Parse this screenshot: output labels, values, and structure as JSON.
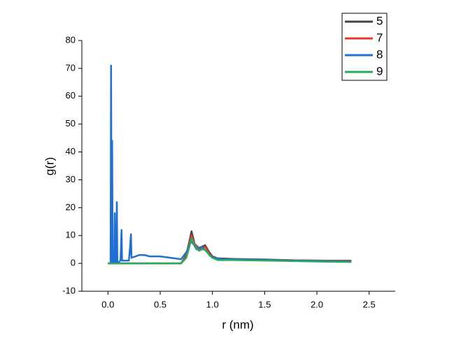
{
  "chart_data": {
    "type": "line",
    "xlabel": "r (nm)",
    "ylabel": "g(r)",
    "xlim": [
      -0.25,
      2.75
    ],
    "ylim": [
      -10,
      80
    ],
    "xticks": [
      {
        "value": 0,
        "label": "0.0"
      },
      0.5,
      {
        "value": 1,
        "label": "1.0"
      },
      1.5,
      {
        "value": 2,
        "label": "2.0"
      },
      2.5
    ],
    "yticks": [
      -10,
      0,
      10,
      20,
      30,
      40,
      50,
      60,
      70,
      80
    ],
    "legend": "upper right",
    "series": [
      {
        "name": "5",
        "color": "#444444",
        "x": [
          0,
          0.7,
          0.75,
          0.78,
          0.8,
          0.83,
          0.87,
          0.9,
          0.93,
          0.97,
          1.0,
          1.05,
          1.2,
          1.5,
          1.8,
          2.1,
          2.33
        ],
        "values": [
          0,
          0,
          3,
          8,
          11.5,
          7,
          5.5,
          6,
          6.5,
          4,
          2.5,
          1.8,
          1.6,
          1.4,
          1.1,
          0.9,
          0.8
        ]
      },
      {
        "name": "7",
        "color": "#e8372f",
        "x": [
          0,
          0.7,
          0.75,
          0.78,
          0.8,
          0.83,
          0.87,
          0.9,
          0.93,
          0.97,
          1.0,
          1.05,
          1.2,
          1.5,
          1.8,
          2.1,
          2.33
        ],
        "values": [
          0,
          0,
          2.5,
          7,
          10,
          7,
          5,
          5.5,
          6,
          3.5,
          2.2,
          1.5,
          1.5,
          1.3,
          1.1,
          1,
          1
        ]
      },
      {
        "name": "8",
        "color": "#1f6fd6",
        "x": [
          0,
          0.025,
          0.03,
          0.035,
          0.04,
          0.045,
          0.06,
          0.065,
          0.07,
          0.08,
          0.085,
          0.09,
          0.12,
          0.13,
          0.135,
          0.2,
          0.21,
          0.22,
          0.225,
          0.3,
          0.35,
          0.4,
          0.5,
          0.6,
          0.7,
          0.75,
          0.8,
          0.85,
          0.9,
          0.95,
          1.0,
          1.1,
          1.2,
          1.4,
          1.6,
          1.8,
          2.0,
          2.2,
          2.33
        ],
        "values": [
          0,
          0,
          71,
          0,
          44,
          0,
          0,
          18,
          0,
          0,
          22,
          0,
          1,
          12,
          1,
          1,
          5,
          10.5,
          2,
          3,
          3,
          2.5,
          2.5,
          2,
          1.5,
          4,
          8,
          5,
          6,
          4,
          2,
          1.5,
          1.5,
          1.3,
          1.2,
          1,
          0.9,
          0.8,
          0.8
        ]
      },
      {
        "name": "9",
        "color": "#2aaa5a",
        "x": [
          0,
          0.7,
          0.75,
          0.78,
          0.8,
          0.83,
          0.87,
          0.9,
          0.93,
          0.97,
          1.0,
          1.05,
          1.2,
          1.5,
          1.8,
          2.1,
          2.33
        ],
        "values": [
          0,
          0,
          2,
          6,
          9,
          6.5,
          4.5,
          5,
          5,
          3,
          2,
          1.2,
          1.2,
          1,
          0.8,
          0.6,
          0.5
        ]
      }
    ]
  }
}
